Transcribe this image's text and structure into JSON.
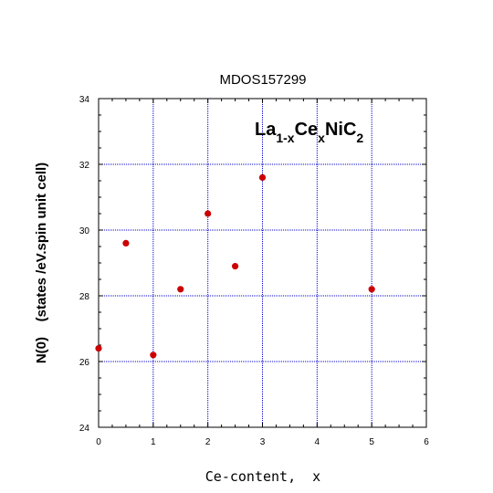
{
  "chart_data": {
    "type": "scatter",
    "title": "MDOS157299",
    "xlabel": "Ce-content,  x",
    "ylabel": "N(0)    (states /eV.spin unit cell)",
    "annotation": {
      "base1": "La",
      "sub1": "1-x",
      "base2": "Ce",
      "sub2": "x",
      "base3": "NiC",
      "sub3": "2"
    },
    "xlim": [
      0,
      6
    ],
    "ylim": [
      24,
      34
    ],
    "xticks": [
      0,
      1,
      2,
      3,
      4,
      5,
      6
    ],
    "yticks": [
      24,
      26,
      28,
      30,
      32,
      34
    ],
    "xtick_labels": [
      "0",
      "1",
      "2",
      "3",
      "4",
      "5",
      "6"
    ],
    "ytick_labels": [
      "24",
      "26",
      "28",
      "30",
      "32",
      "34"
    ],
    "grid": true,
    "grid_color": "#0000cc",
    "marker_color": "#cc0000",
    "points": [
      {
        "x": 0.0,
        "y": 26.4
      },
      {
        "x": 0.5,
        "y": 29.6
      },
      {
        "x": 1.0,
        "y": 26.2
      },
      {
        "x": 1.5,
        "y": 28.2
      },
      {
        "x": 2.0,
        "y": 30.5
      },
      {
        "x": 2.5,
        "y": 28.9
      },
      {
        "x": 3.0,
        "y": 31.6
      },
      {
        "x": 5.0,
        "y": 28.2
      }
    ]
  }
}
